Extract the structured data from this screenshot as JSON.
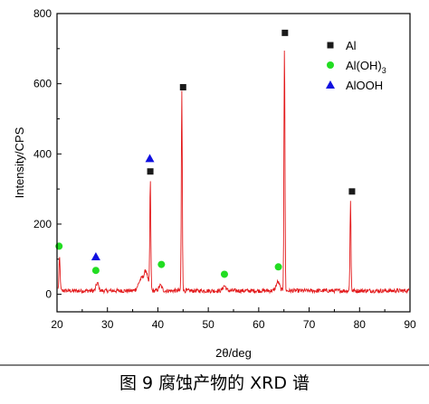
{
  "chart_data": {
    "type": "line",
    "xlabel": "2θ/deg",
    "ylabel": "Intensity/CPS",
    "xlim": [
      20,
      90
    ],
    "ylim": [
      -50,
      800
    ],
    "xticks": [
      "20",
      "30",
      "40",
      "50",
      "60",
      "70",
      "80",
      "90"
    ],
    "yticks": [
      "0",
      "200",
      "400",
      "600",
      "800"
    ],
    "xtick_values": [
      20,
      30,
      40,
      50,
      60,
      70,
      80,
      90
    ],
    "ytick_values": [
      0,
      200,
      400,
      600,
      800
    ],
    "caption": "图 9   腐蚀产物的 XRD 谱",
    "line_color": "#e31a1c",
    "baseline": 10,
    "noise": 6,
    "peaks": [
      {
        "x": 20.5,
        "height": 95,
        "width": 0.12
      },
      {
        "x": 28.0,
        "height": 22,
        "width": 0.25
      },
      {
        "x": 36.8,
        "height": 35,
        "width": 0.6
      },
      {
        "x": 37.7,
        "height": 45,
        "width": 0.35
      },
      {
        "x": 38.5,
        "height": 310,
        "width": 0.1
      },
      {
        "x": 40.5,
        "height": 15,
        "width": 0.3
      },
      {
        "x": 44.75,
        "height": 570,
        "width": 0.1
      },
      {
        "x": 53.2,
        "height": 14,
        "width": 0.3
      },
      {
        "x": 63.8,
        "height": 25,
        "width": 0.35
      },
      {
        "x": 65.1,
        "height": 700,
        "width": 0.1
      },
      {
        "x": 78.2,
        "height": 255,
        "width": 0.1
      }
    ],
    "legend": {
      "position": "top-right",
      "entries": [
        {
          "label": "Al",
          "marker": "square",
          "color": "#1a1a1a",
          "sub": ""
        },
        {
          "label": "Al(OH)",
          "marker": "circle",
          "color": "#22dd22",
          "sub": "3"
        },
        {
          "label": "AlOOH",
          "marker": "triangle",
          "color": "#1010e0",
          "sub": ""
        }
      ]
    },
    "phase_markers": [
      {
        "phase": "Al",
        "marker": "square",
        "x": 38.5,
        "y": 350
      },
      {
        "phase": "Al",
        "marker": "square",
        "x": 45.0,
        "y": 590
      },
      {
        "phase": "Al",
        "marker": "square",
        "x": 65.2,
        "y": 745
      },
      {
        "phase": "Al",
        "marker": "square",
        "x": 78.5,
        "y": 293
      },
      {
        "phase": "Al(OH)3",
        "marker": "circle",
        "x": 20.4,
        "y": 137
      },
      {
        "phase": "Al(OH)3",
        "marker": "circle",
        "x": 27.7,
        "y": 68
      },
      {
        "phase": "Al(OH)3",
        "marker": "circle",
        "x": 40.7,
        "y": 85
      },
      {
        "phase": "Al(OH)3",
        "marker": "circle",
        "x": 53.2,
        "y": 57
      },
      {
        "phase": "Al(OH)3",
        "marker": "circle",
        "x": 63.9,
        "y": 78
      },
      {
        "phase": "AlOOH",
        "marker": "triangle",
        "x": 27.7,
        "y": 107
      },
      {
        "phase": "AlOOH",
        "marker": "triangle",
        "x": 38.4,
        "y": 387
      }
    ]
  }
}
